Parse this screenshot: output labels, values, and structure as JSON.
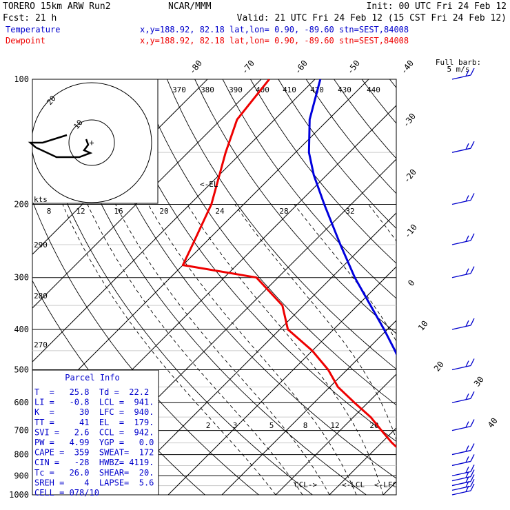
{
  "header": {
    "model": "TORERO  15km ARW   Run2",
    "org": "NCAR/MMM",
    "init": "Init: 00 UTC Fri 24 Feb 12",
    "fcst": "Fcst:   21 h",
    "valid": "Valid: 21 UTC Fri 24 Feb 12 (15 CST Fri 24 Feb 12)",
    "temp_label": "Temperature",
    "dew_label": "Dewpoint",
    "temp_loc": "x,y=188.92, 82.18   lat,lon=  0.90, -89.60  stn=SEST,84008",
    "dew_loc": "x,y=188.92, 82.18   lat,lon=  0.90, -89.60  stn=SEST,84008"
  },
  "barb_legend": {
    "line1": "Full barb:",
    "line2": "5 m/s"
  },
  "hodograph": {
    "unit": "kts",
    "ring_labels": [
      "10",
      "20"
    ]
  },
  "parcel_info": {
    "title": "Parcel Info",
    "rows": [
      "T  =   25.8  Td =  22.2",
      "LI =   -0.8  LCL =  941.",
      "K  =     30  LFC =  940.",
      "TT =     41  EL  =  179.",
      "SVI =   2.6  CCL =  942.",
      "PW =   4.99  YGP =   0.0",
      "CAPE =  359  SWEAT=  172",
      "CIN =   -28  HWBZ= 4119.",
      "Tc =   26.0  SHEAR=  20.",
      "SREH =    4  LAPSE=  5.6",
      "CELL = 078/10"
    ]
  },
  "annotations": {
    "el": "<-EL",
    "ccl": "CCL->",
    "lcl": "<-LCL",
    "lfc": "<-LFC"
  },
  "chart_data": {
    "type": "line",
    "title": "",
    "y_axis": {
      "scale": "log-pressure",
      "unit": "hPa",
      "range": [
        1000,
        100
      ],
      "ticks": [
        1000,
        900,
        800,
        700,
        600,
        500,
        400,
        300,
        200,
        100
      ]
    },
    "isotherm_labels": [
      -80,
      -70,
      -60,
      -50,
      -40,
      -30,
      -20,
      -10,
      0,
      10,
      20,
      30,
      40
    ],
    "dry_adiabat_labels": [
      370,
      380,
      390,
      400,
      410,
      420,
      430,
      440,
      290,
      280,
      270
    ],
    "mixing_ratio_upper_labels": [
      8,
      12,
      16,
      20,
      24,
      28,
      32
    ],
    "mixing_ratio_lower_labels": [
      2,
      3,
      5,
      8,
      12,
      20
    ],
    "series": [
      {
        "name": "Temperature",
        "color": "#0000dd",
        "pressure": [
          1000,
          975,
          950,
          925,
          900,
          850,
          800,
          750,
          700,
          650,
          600,
          550,
          500,
          450,
          400,
          350,
          300,
          250,
          200,
          170,
          150,
          125,
          100
        ],
        "temp_c": [
          25.8,
          23.5,
          22.0,
          21.0,
          19.5,
          16.8,
          13.5,
          10.0,
          6.4,
          2.6,
          -1.0,
          -5.0,
          -9.5,
          -14.6,
          -20.6,
          -27.6,
          -35.7,
          -44.5,
          -55.0,
          -62.4,
          -67.5,
          -73.5,
          -79.0
        ]
      },
      {
        "name": "Dewpoint",
        "color": "#ee0000",
        "pressure": [
          1000,
          975,
          950,
          925,
          900,
          850,
          800,
          750,
          700,
          650,
          600,
          550,
          500,
          450,
          400,
          350,
          300,
          280,
          250,
          200,
          150,
          125,
          100
        ],
        "temp_c": [
          22.2,
          21.5,
          21.0,
          18.5,
          15.6,
          11.0,
          6.5,
          2.0,
          -2.3,
          -6.8,
          -12.5,
          -18.5,
          -23.5,
          -30.0,
          -38.5,
          -44.0,
          -54.0,
          -70.0,
          -72.0,
          -76.0,
          -83.0,
          -87.0,
          -88.5
        ]
      }
    ],
    "wind_barbs": {
      "unit": "m/s",
      "full_barb_value": 5,
      "levels_hpa": [
        1000,
        975,
        950,
        925,
        900,
        850,
        800,
        700,
        600,
        500,
        400,
        300,
        250,
        200,
        150,
        100
      ]
    },
    "grid": true,
    "legend": "top-left"
  }
}
